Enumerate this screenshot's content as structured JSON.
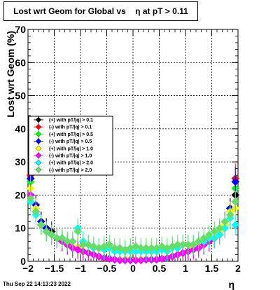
{
  "title": "Lost wrt Geom for Global vs    η at pT > 0.11",
  "footer_date": "Thu Sep 22 14:13:23 2022",
  "chart_data": {
    "type": "scatter",
    "title": "Lost wrt Geom for Global vs    η at pT > 0.11",
    "xlabel": "η",
    "ylabel": "Lost wrt Geom (%)",
    "xlim": [
      -2,
      2
    ],
    "ylim": [
      0,
      70
    ],
    "grid": true,
    "legend_placement": "middle-left",
    "x_ticks": [
      "−2",
      "−1.5",
      "−1",
      "−0.5",
      "0",
      "0.5",
      "1",
      "1.5",
      "2"
    ],
    "y_ticks": [
      "0",
      "10",
      "20",
      "30",
      "40",
      "50",
      "60",
      "70"
    ],
    "x": [
      -1.95,
      -1.85,
      -1.75,
      -1.65,
      -1.55,
      -1.45,
      -1.35,
      -1.25,
      -1.15,
      -1.05,
      -0.95,
      -0.85,
      -0.75,
      -0.65,
      -0.55,
      -0.45,
      -0.35,
      -0.25,
      -0.15,
      -0.05,
      0.05,
      0.15,
      0.25,
      0.35,
      0.45,
      0.55,
      0.65,
      0.75,
      0.85,
      0.95,
      1.05,
      1.15,
      1.25,
      1.35,
      1.45,
      1.55,
      1.65,
      1.75,
      1.85,
      1.95
    ],
    "series": [
      {
        "name": "(+) with pT/|q| > 0.1",
        "color": "#000000",
        "values": [
          25,
          17,
          12,
          10,
          9,
          7,
          6,
          5,
          4.5,
          4,
          3,
          2.5,
          2,
          1.5,
          1,
          0.8,
          0.5,
          0.5,
          0.5,
          0.5,
          0.5,
          0.5,
          0.5,
          0.5,
          0.5,
          0.8,
          1,
          1.5,
          2,
          2.5,
          3,
          4,
          4.5,
          5,
          6,
          7,
          9,
          11,
          16,
          20
        ]
      },
      {
        "name": "(-) with pT/|q| > 0.1",
        "color": "#ff0000",
        "values": [
          26,
          16,
          12,
          10,
          8,
          7,
          6,
          5,
          4.5,
          4,
          3,
          2.5,
          2,
          1.5,
          1,
          0.8,
          0.5,
          0.5,
          0.5,
          0.5,
          0.5,
          0.5,
          0.5,
          0.5,
          0.5,
          0.8,
          1,
          1.5,
          2,
          2.5,
          3,
          4,
          4.5,
          5,
          6,
          7,
          9,
          12,
          16,
          25
        ]
      },
      {
        "name": "(+) with pT/|q| > 0.5",
        "color": "#00ff00",
        "values": [
          24,
          16,
          11,
          9,
          8,
          7,
          6,
          5,
          4.5,
          4,
          3,
          2.5,
          2,
          1.5,
          1,
          0.8,
          0.5,
          0.5,
          0.5,
          0.5,
          0.5,
          0.5,
          0.5,
          0.5,
          0.5,
          0.8,
          1,
          1.5,
          2,
          2.5,
          3,
          4,
          4.5,
          5,
          6,
          7,
          9,
          11,
          15,
          22
        ]
      },
      {
        "name": "(-) with pT/|q| > 0.5",
        "color": "#0000ff",
        "values": [
          25,
          17,
          12,
          10,
          8,
          7,
          6,
          5,
          4.5,
          4,
          3,
          2.5,
          2,
          1.5,
          1,
          0.8,
          0.5,
          0.5,
          0.5,
          0.5,
          0.5,
          0.5,
          0.5,
          0.5,
          0.5,
          0.8,
          1,
          1.5,
          2,
          2.5,
          3,
          4,
          4.5,
          5,
          6,
          7,
          9,
          12,
          16,
          24
        ]
      },
      {
        "name": "(+) with pT/|q| > 1.0",
        "color": "#ffff00",
        "values": [
          22,
          16,
          11,
          9,
          8,
          7,
          6,
          5,
          4.5,
          4,
          3,
          2.5,
          2,
          1.5,
          1,
          0.8,
          0.5,
          0.5,
          0.5,
          0.5,
          0.5,
          0.5,
          0.5,
          0.5,
          0.5,
          0.8,
          1,
          1.5,
          2,
          2.5,
          3,
          4,
          4.5,
          5,
          6,
          7,
          9,
          11,
          15,
          16
        ]
      },
      {
        "name": "(-) with pT/|q| > 1.0",
        "color": "#ff00ff",
        "values": [
          20,
          15,
          11,
          9,
          8,
          7,
          6,
          5,
          4,
          3.5,
          3,
          2.5,
          2,
          1.5,
          1,
          0.8,
          0.5,
          0.3,
          0.3,
          0.3,
          0.3,
          0.3,
          0.5,
          0.5,
          0.5,
          0.8,
          1,
          1.5,
          2,
          2.5,
          3,
          3.5,
          4,
          5,
          6,
          7,
          8,
          10,
          14,
          18
        ]
      },
      {
        "name": "(+) with pT/|q| > 2.0",
        "color": "#00ffff",
        "values": [
          18,
          14,
          11,
          9,
          8,
          7,
          7,
          6,
          6,
          10,
          6,
          5,
          4,
          4,
          3.5,
          4,
          3,
          3,
          3,
          3,
          3,
          3,
          3,
          3,
          3,
          3.5,
          3,
          4,
          4,
          5,
          5,
          5,
          6,
          6,
          7,
          7,
          8,
          10,
          13,
          11
        ]
      },
      {
        "name": "(-) with pT/|q| > 2.0",
        "color": "#66dd66",
        "values": [
          19,
          15,
          11,
          9,
          8,
          7,
          7,
          6,
          6,
          9,
          5,
          5,
          4.5,
          4,
          4.5,
          5,
          4,
          4,
          3.5,
          4,
          4.5,
          4,
          4,
          4,
          4,
          4.5,
          4,
          4.5,
          5,
          5,
          5,
          5,
          6,
          7,
          8,
          9,
          10,
          12,
          14,
          18
        ]
      }
    ]
  }
}
